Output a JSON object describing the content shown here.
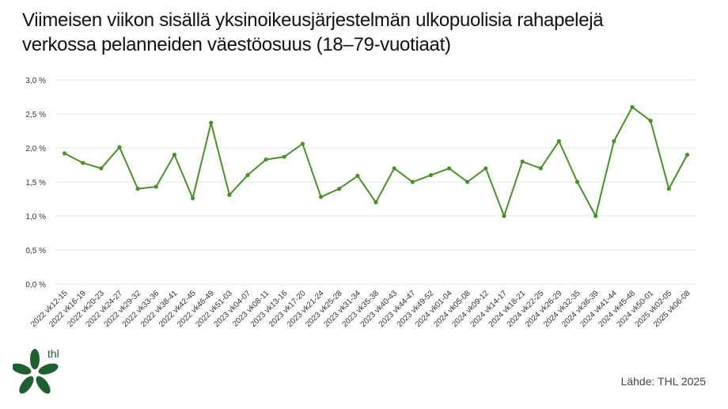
{
  "title_lines": [
    "Viimeisen viikon sisällä yksinoikeusjärjestelmän ulkopuolisia rahapelejä",
    "verkossa pelanneiden väestöosuus (18–79-vuotiaat)"
  ],
  "source": "Lähde: THL 2025",
  "logo_text": "thl",
  "colors": {
    "line": "#4a8f2a",
    "grid": "#e6e6e6",
    "logo": "#1f5e2e"
  },
  "chart_data": {
    "type": "line",
    "title": "Viimeisen viikon sisällä yksinoikeusjärjestelmän ulkopuolisia rahapelejä verkossa pelanneiden väestöosuus (18–79-vuotiaat)",
    "xlabel": "",
    "ylabel": "",
    "ylim": [
      0,
      3.0
    ],
    "yticks": [
      "0,0 %",
      "0,5 %",
      "1,0 %",
      "1,5 %",
      "2,0 %",
      "2,5 %",
      "3,0 %"
    ],
    "grid": true,
    "legend": "none",
    "categories": [
      "2022 vk12-15",
      "2022 vk16-19",
      "2022 vk20-23",
      "2022 vk24-27",
      "2022 vk29-32",
      "2022 vk33-36",
      "2022 vk38-41",
      "2022 vk42-45",
      "2022 vk46-49",
      "2022 vk51-03",
      "2023 vk04-07",
      "2023 vk08-11",
      "2023 vk13-16",
      "2023 vk17-20",
      "2023 vk21-24",
      "2023 vk25-28",
      "2023 vk31-34",
      "2023 vk35-38",
      "2023 vk40-43",
      "2023 vk44-47",
      "2023 vk49-52",
      "2024 vk01-04",
      "2024 vk05-08",
      "2024 vk09-12",
      "2024 vk14-17",
      "2024 vk18-21",
      "2024 vk22-25",
      "2024 vk26-29",
      "2024 vk32-35",
      "2024 vk36-39",
      "2024 vk41-44",
      "2024 vk45-48",
      "2024 vk50-01",
      "2025 vk02-05",
      "2025 vk06-08"
    ],
    "series": [
      {
        "values": [
          1.92,
          1.78,
          1.7,
          2.01,
          1.4,
          1.43,
          1.9,
          1.26,
          2.37,
          1.31,
          1.6,
          1.83,
          1.87,
          2.06,
          1.28,
          1.4,
          1.59,
          1.2,
          1.7,
          1.5,
          1.6,
          1.7,
          1.5,
          1.7,
          1.0,
          1.8,
          1.7,
          2.1,
          1.5,
          1.0,
          2.1,
          2.6,
          2.4,
          1.4,
          1.9
        ]
      }
    ]
  }
}
